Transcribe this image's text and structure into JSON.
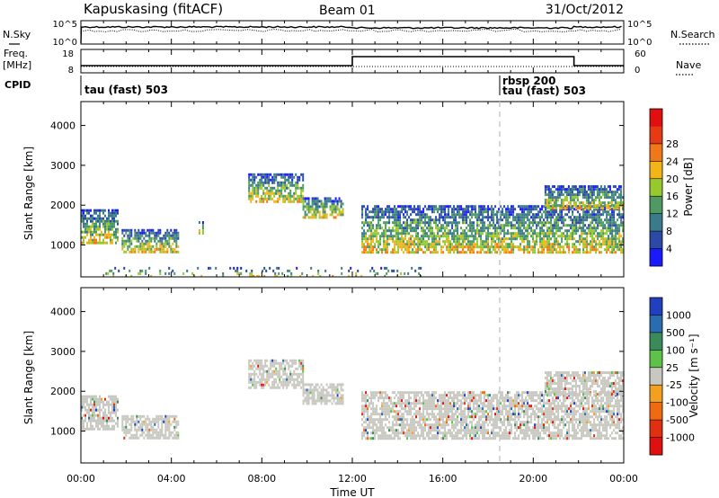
{
  "header": {
    "station": "Kapuskasing (fitACF)",
    "beam": "Beam 01",
    "date": "31/Oct/2012"
  },
  "sky_panel": {
    "left_label": "N.Sky",
    "right_label": "N.Search",
    "top_tick": "10^5",
    "bottom_tick": "10^0"
  },
  "freq_panel": {
    "left_label_line1": "Freq.",
    "left_label_line2": "[MHz]",
    "right_label": "Nave",
    "left_ticks": [
      "18",
      "8"
    ],
    "right_ticks": [
      "60",
      "0"
    ]
  },
  "cpid": {
    "label": "CPID",
    "modes": [
      {
        "text": "tau (fast) 503"
      },
      {
        "text": "rbsp 200"
      },
      {
        "text": "tau (fast) 503"
      }
    ]
  },
  "chart_data": [
    {
      "type": "heatmap",
      "name": "power",
      "xlabel": "",
      "ylabel": "Slant Range [km]",
      "xlim": [
        "00:00",
        "24:00"
      ],
      "ylim": [
        200,
        4600
      ],
      "yticks": [
        "1000",
        "2000",
        "3000",
        "4000"
      ],
      "colorbar": {
        "label": "Power [dB]",
        "ticks": [
          "4",
          "8",
          "12",
          "16",
          "20",
          "24",
          "28"
        ],
        "colors": [
          "#1a1aff",
          "#2a4aa6",
          "#3b7a8a",
          "#4e9a62",
          "#96c92e",
          "#f2b418",
          "#f07818",
          "#e53a14",
          "#e01010"
        ]
      },
      "echo_regions": [
        {
          "x": [
            0.0,
            1.6
          ],
          "y": [
            1050,
            1900
          ]
        },
        {
          "x": [
            1.8,
            4.3
          ],
          "y": [
            850,
            1400
          ]
        },
        {
          "x": [
            5.2,
            5.4
          ],
          "y": [
            1300,
            1600
          ]
        },
        {
          "x": [
            7.4,
            9.8
          ],
          "y": [
            2100,
            2800
          ]
        },
        {
          "x": [
            9.8,
            11.6
          ],
          "y": [
            1700,
            2200
          ]
        },
        {
          "x": [
            12.4,
            24.0
          ],
          "y": [
            800,
            2000
          ]
        },
        {
          "x": [
            20.5,
            24.0
          ],
          "y": [
            1900,
            2500
          ]
        },
        {
          "x": [
            1.0,
            15.0
          ],
          "y": [
            200,
            450
          ]
        }
      ]
    },
    {
      "type": "heatmap",
      "name": "velocity",
      "xlabel": "Time UT",
      "ylabel": "Slant Range [km]",
      "xlim": [
        "00:00",
        "24:00"
      ],
      "ylim": [
        200,
        4600
      ],
      "xticks": [
        "00:00",
        "04:00",
        "08:00",
        "12:00",
        "16:00",
        "20:00",
        "00:00"
      ],
      "yticks": [
        "1000",
        "2000",
        "3000",
        "4000"
      ],
      "colorbar": {
        "label": "Velocity [m s⁻¹]",
        "ticks": [
          "1000",
          "500",
          "100",
          "25",
          "-25",
          "-100",
          "-500",
          "-1000"
        ],
        "colors": [
          "#2040c0",
          "#2a6cb0",
          "#3a8a5a",
          "#5ec24a",
          "#c8c8c0",
          "#f3a020",
          "#f06a10",
          "#e03010",
          "#e01010"
        ]
      },
      "echo_regions": [
        {
          "x": [
            0.0,
            1.6
          ],
          "y": [
            1050,
            1900
          ]
        },
        {
          "x": [
            1.8,
            4.3
          ],
          "y": [
            850,
            1400
          ]
        },
        {
          "x": [
            7.4,
            9.8
          ],
          "y": [
            2100,
            2800
          ]
        },
        {
          "x": [
            9.8,
            11.6
          ],
          "y": [
            1700,
            2200
          ]
        },
        {
          "x": [
            12.4,
            24.0
          ],
          "y": [
            800,
            2000
          ]
        },
        {
          "x": [
            20.5,
            24.0
          ],
          "y": [
            1900,
            2500
          ]
        }
      ]
    }
  ]
}
